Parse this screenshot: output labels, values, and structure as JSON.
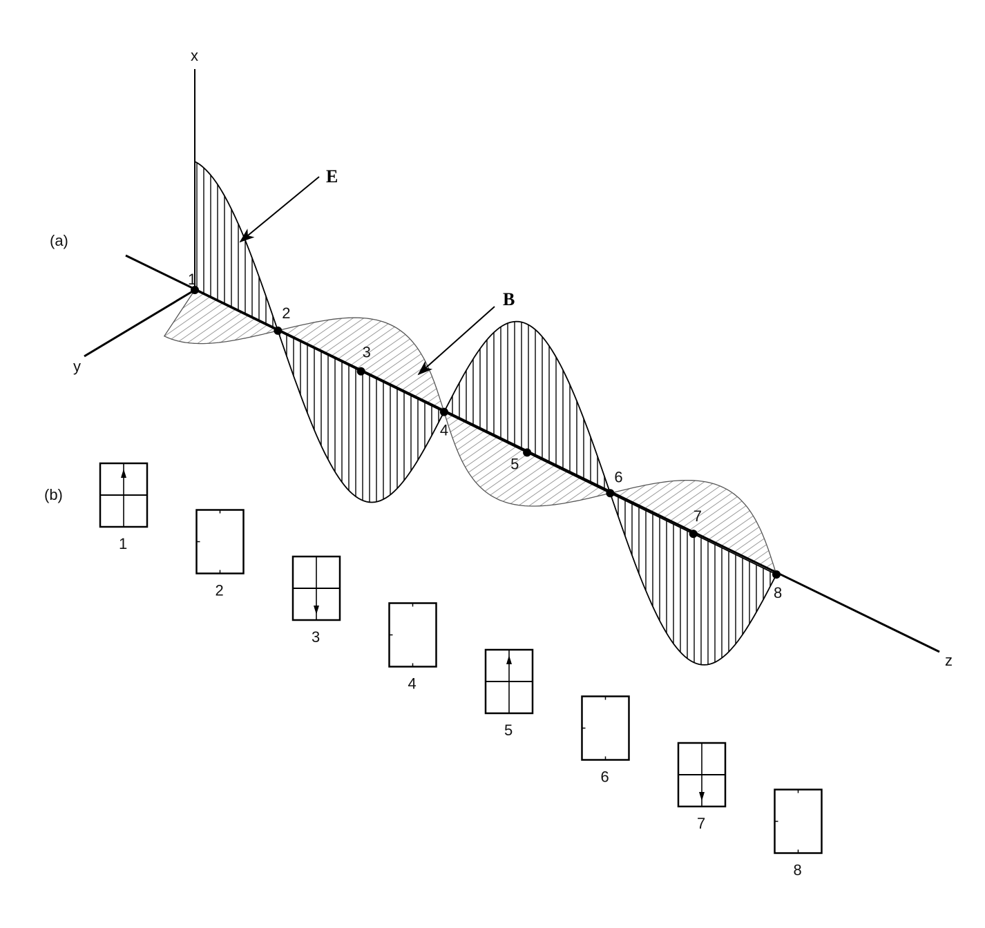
{
  "part_labels": {
    "a": "(a)",
    "b": "(b)"
  },
  "axes": {
    "x": "x",
    "y": "y",
    "z": "z"
  },
  "field_labels": {
    "E": "E",
    "B": "B"
  },
  "points": [
    "1",
    "2",
    "3",
    "4",
    "5",
    "6",
    "7",
    "8"
  ],
  "panels": [
    {
      "label": "1",
      "E": "up"
    },
    {
      "label": "2",
      "E": "none"
    },
    {
      "label": "3",
      "E": "down"
    },
    {
      "label": "4",
      "E": "none"
    },
    {
      "label": "5",
      "E": "up"
    },
    {
      "label": "6",
      "E": "none"
    },
    {
      "label": "7",
      "E": "down"
    },
    {
      "label": "8",
      "E": "none"
    }
  ],
  "colors": {
    "ink": "#000000",
    "hatch_light": "#9a9a9a"
  }
}
